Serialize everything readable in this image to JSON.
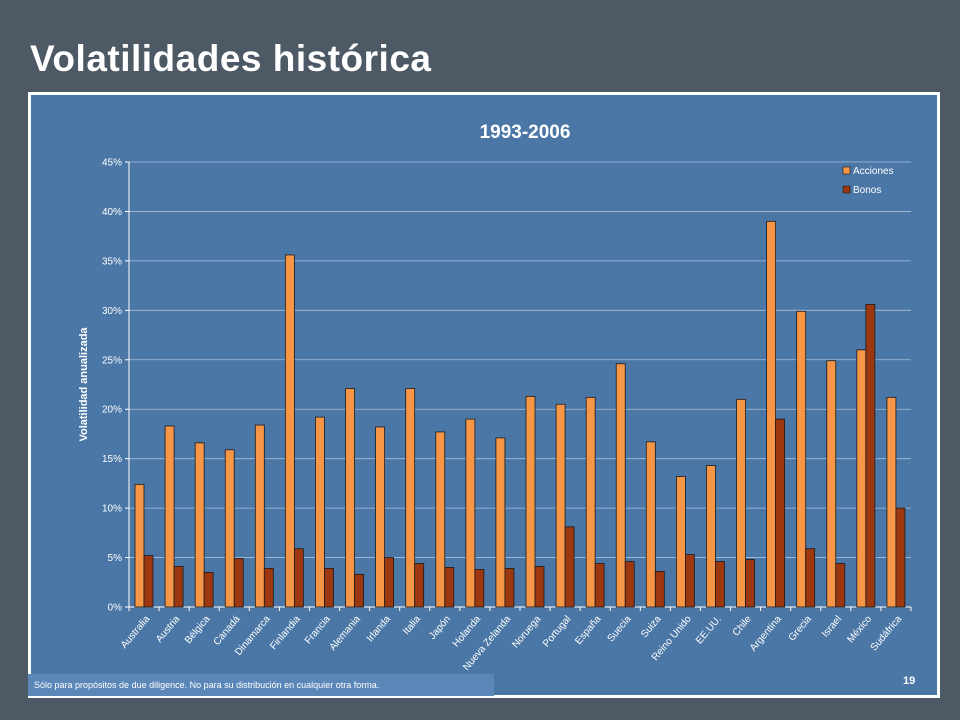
{
  "slide": {
    "title": "Volatilidades histórica",
    "disclaimer": "Sólo para propósitos de due diligence. No para su distribución en cualquier otra forma.",
    "page_number": "19"
  },
  "chart_data": {
    "type": "bar",
    "title": "1993-2006",
    "ylabel": "Volatilidad anualizada",
    "xlabel": "",
    "ylim": [
      0,
      45
    ],
    "yticks": [
      "0%",
      "5%",
      "10%",
      "15%",
      "20%",
      "25%",
      "30%",
      "35%",
      "40%",
      "45%"
    ],
    "grid": true,
    "legend_position": "top-right",
    "categories": [
      "Australia",
      "Austria",
      "Bélgica",
      "Canadá",
      "Dinamarca",
      "Finlandia",
      "Francia",
      "Alemania",
      "Irlanda",
      "Italia",
      "Japón",
      "Holanda",
      "Nueva Zelanda",
      "Noruega",
      "Portugal",
      "España",
      "Suecia",
      "Suiza",
      "Reino Unido",
      "EE.UU.",
      "Chile",
      "Argentina",
      "Grecia",
      "Israel",
      "México",
      "Sudáfrica"
    ],
    "series": [
      {
        "name": "Acciones",
        "color": "#f79646",
        "values": [
          12.4,
          18.3,
          16.6,
          15.9,
          18.4,
          35.6,
          19.2,
          22.1,
          18.2,
          22.1,
          17.7,
          19.0,
          17.1,
          21.3,
          20.5,
          21.2,
          24.6,
          16.7,
          13.2,
          14.3,
          21.0,
          39.0,
          29.9,
          24.9,
          26.0,
          21.2
        ]
      },
      {
        "name": "Bonos",
        "color": "#9c3710",
        "values": [
          5.2,
          4.1,
          3.5,
          4.9,
          3.9,
          5.9,
          3.9,
          3.3,
          5.0,
          4.4,
          4.0,
          3.8,
          3.9,
          4.1,
          8.1,
          4.4,
          4.6,
          3.6,
          5.3,
          4.6,
          4.8,
          19.0,
          5.9,
          4.4,
          30.6,
          10.0
        ]
      }
    ]
  }
}
